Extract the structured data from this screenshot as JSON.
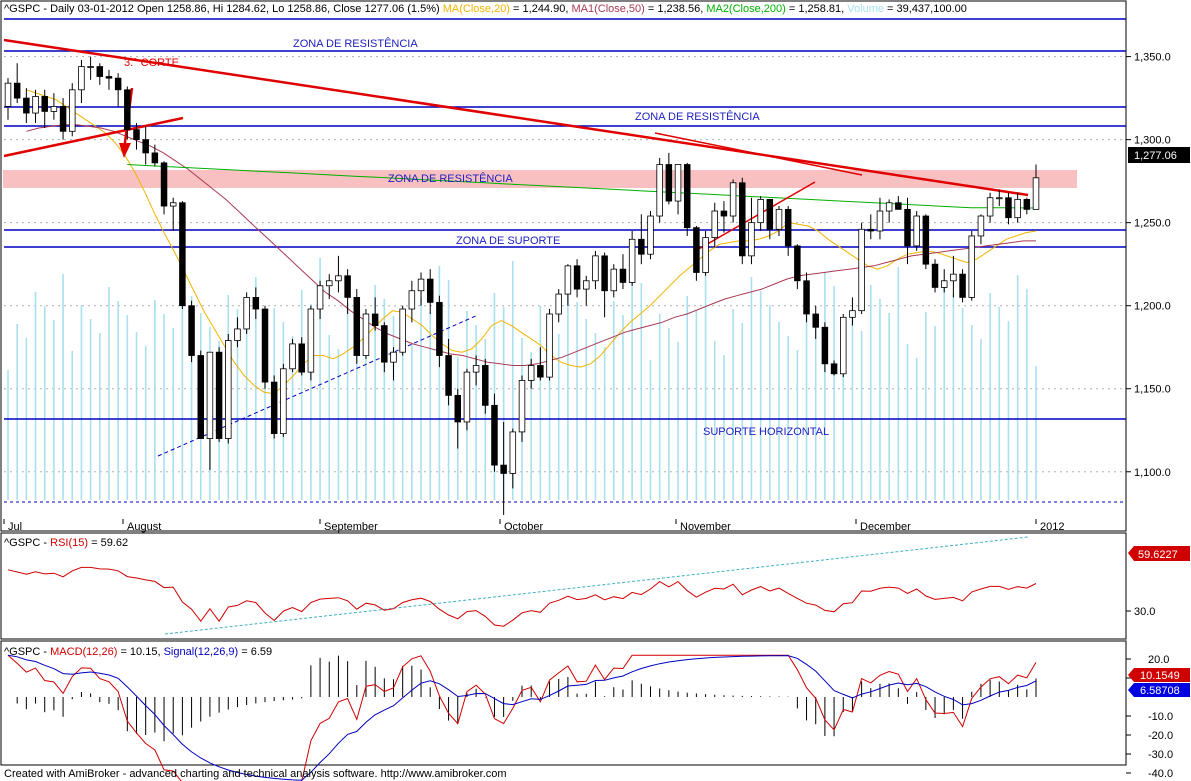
{
  "header": {
    "symbol": "^GSPC",
    "info": "^GSPC - Daily 03-01-2012 Open 1258.86, Hi 1284.62, Lo 1258.86, Close 1277.06 (1.5%)",
    "ma20": "MA(Close,20)",
    "ma20_val": " = 1,244.90,",
    "ma50": "MA1(Close,50)",
    "ma50_val": " = 1,238.56,",
    "ma200": "MA2(Close,200)",
    "ma200_val": " = 1,258.81,",
    "vol": "Volume",
    "vol_val": " = 39,437,100.00"
  },
  "colors": {
    "bull": "#ffffff",
    "bear": "#000000",
    "ma20": "#f4b400",
    "ma50": "#a83a54",
    "ma200": "#00b000",
    "volume": "#a8e0f0",
    "trend": "#e00000",
    "level": "#0000c0",
    "zone_fill": "#f8c0c0",
    "rsi": "#d00000",
    "macd": "#d00000",
    "signal": "#0000c0"
  },
  "price_axis": {
    "min": 1070,
    "max": 1370,
    "ticks": [
      "1,100.0",
      "1,150.0",
      "1,200.0",
      "1,250.0",
      "1,300.0",
      "1,350.0"
    ]
  },
  "last_price_label": "1,277.06",
  "months": [
    "Jul",
    "August",
    "September",
    "October",
    "November",
    "December",
    "2012"
  ],
  "annotations": {
    "zona_res_top": "ZONA DE RESISTÊNCIA",
    "zona_res_mid": "ZONA DE RESISTÊNCIA",
    "zona_res_pink": "ZONA DE RESISTÊNCIA",
    "zona_sup": "ZONA DE SUPORTE",
    "sup_horizontal": "SUPORTE HORIZONTAL",
    "corte": "3.° CORTE"
  },
  "rsi": {
    "title": "^GSPC - RSI(15) = 59.62",
    "label_prefix": "^GSPC - ",
    "name": "RSI(15)",
    "value": " = 59.62",
    "last_label": "59.6227",
    "tick": "30.0"
  },
  "macd": {
    "prefix": "^GSPC - ",
    "name": "MACD(12,26)",
    "value": " = 10.15, ",
    "sig_name": "Signal(12,26,9)",
    "sig_value": " = 6.59",
    "last_macd": "10.1549",
    "last_signal": "6.58708",
    "ticks": [
      "20.0",
      "10.0",
      "-10.0",
      "-20.0",
      "-30.0",
      "-40.0"
    ]
  },
  "footer": "Created with AmiBroker - advanced charting and technical analysis software. http://www.amibroker.com",
  "chart_data": {
    "type": "candlestick",
    "title": "^GSPC - Daily 03-01-2012",
    "ylim": [
      1070,
      1370
    ],
    "candles": [
      {
        "o": 1320,
        "h": 1337,
        "l": 1312,
        "c": 1334
      },
      {
        "o": 1334,
        "h": 1346,
        "l": 1322,
        "c": 1325
      },
      {
        "o": 1325,
        "h": 1331,
        "l": 1310,
        "c": 1316
      },
      {
        "o": 1316,
        "h": 1330,
        "l": 1310,
        "c": 1326
      },
      {
        "o": 1326,
        "h": 1330,
        "l": 1307,
        "c": 1317
      },
      {
        "o": 1317,
        "h": 1328,
        "l": 1312,
        "c": 1320
      },
      {
        "o": 1320,
        "h": 1325,
        "l": 1300,
        "c": 1305
      },
      {
        "o": 1305,
        "h": 1334,
        "l": 1302,
        "c": 1330
      },
      {
        "o": 1330,
        "h": 1348,
        "l": 1322,
        "c": 1344
      },
      {
        "o": 1344,
        "h": 1350,
        "l": 1336,
        "c": 1344
      },
      {
        "o": 1344,
        "h": 1346,
        "l": 1333,
        "c": 1338
      },
      {
        "o": 1338,
        "h": 1342,
        "l": 1330,
        "c": 1337
      },
      {
        "o": 1337,
        "h": 1340,
        "l": 1320,
        "c": 1330
      },
      {
        "o": 1330,
        "h": 1332,
        "l": 1300,
        "c": 1306
      },
      {
        "o": 1306,
        "h": 1310,
        "l": 1294,
        "c": 1300
      },
      {
        "o": 1300,
        "h": 1308,
        "l": 1285,
        "c": 1292
      },
      {
        "o": 1292,
        "h": 1297,
        "l": 1284,
        "c": 1286
      },
      {
        "o": 1286,
        "h": 1287,
        "l": 1255,
        "c": 1260
      },
      {
        "o": 1260,
        "h": 1265,
        "l": 1245,
        "c": 1262
      },
      {
        "o": 1262,
        "h": 1263,
        "l": 1198,
        "c": 1200
      },
      {
        "o": 1200,
        "h": 1203,
        "l": 1166,
        "c": 1170
      },
      {
        "o": 1170,
        "h": 1173,
        "l": 1120,
        "c": 1120
      },
      {
        "o": 1120,
        "h": 1172,
        "l": 1101,
        "c": 1172
      },
      {
        "o": 1172,
        "h": 1175,
        "l": 1118,
        "c": 1120
      },
      {
        "o": 1120,
        "h": 1183,
        "l": 1117,
        "c": 1179
      },
      {
        "o": 1179,
        "h": 1193,
        "l": 1175,
        "c": 1186
      },
      {
        "o": 1186,
        "h": 1208,
        "l": 1183,
        "c": 1205
      },
      {
        "o": 1205,
        "h": 1211,
        "l": 1192,
        "c": 1198
      },
      {
        "o": 1198,
        "h": 1200,
        "l": 1150,
        "c": 1154
      },
      {
        "o": 1154,
        "h": 1158,
        "l": 1120,
        "c": 1123
      },
      {
        "o": 1123,
        "h": 1165,
        "l": 1121,
        "c": 1162
      },
      {
        "o": 1162,
        "h": 1180,
        "l": 1160,
        "c": 1177
      },
      {
        "o": 1177,
        "h": 1181,
        "l": 1158,
        "c": 1160
      },
      {
        "o": 1160,
        "h": 1200,
        "l": 1155,
        "c": 1198
      },
      {
        "o": 1198,
        "h": 1215,
        "l": 1192,
        "c": 1212
      },
      {
        "o": 1212,
        "h": 1219,
        "l": 1204,
        "c": 1215
      },
      {
        "o": 1215,
        "h": 1230,
        "l": 1208,
        "c": 1218
      },
      {
        "o": 1218,
        "h": 1222,
        "l": 1195,
        "c": 1205
      },
      {
        "o": 1205,
        "h": 1210,
        "l": 1165,
        "c": 1170
      },
      {
        "o": 1170,
        "h": 1198,
        "l": 1168,
        "c": 1195
      },
      {
        "o": 1195,
        "h": 1205,
        "l": 1185,
        "c": 1188
      },
      {
        "o": 1188,
        "h": 1190,
        "l": 1160,
        "c": 1166
      },
      {
        "o": 1166,
        "h": 1175,
        "l": 1155,
        "c": 1172
      },
      {
        "o": 1172,
        "h": 1200,
        "l": 1170,
        "c": 1198
      },
      {
        "o": 1198,
        "h": 1215,
        "l": 1190,
        "c": 1209
      },
      {
        "o": 1209,
        "h": 1220,
        "l": 1200,
        "c": 1216
      },
      {
        "o": 1216,
        "h": 1222,
        "l": 1195,
        "c": 1202
      },
      {
        "o": 1202,
        "h": 1206,
        "l": 1163,
        "c": 1170
      },
      {
        "o": 1170,
        "h": 1180,
        "l": 1140,
        "c": 1146
      },
      {
        "o": 1146,
        "h": 1150,
        "l": 1114,
        "c": 1130
      },
      {
        "o": 1130,
        "h": 1162,
        "l": 1125,
        "c": 1160
      },
      {
        "o": 1160,
        "h": 1170,
        "l": 1152,
        "c": 1164
      },
      {
        "o": 1164,
        "h": 1168,
        "l": 1135,
        "c": 1140
      },
      {
        "o": 1140,
        "h": 1147,
        "l": 1100,
        "c": 1104
      },
      {
        "o": 1104,
        "h": 1130,
        "l": 1074,
        "c": 1099
      },
      {
        "o": 1099,
        "h": 1126,
        "l": 1090,
        "c": 1124
      },
      {
        "o": 1124,
        "h": 1158,
        "l": 1118,
        "c": 1155
      },
      {
        "o": 1155,
        "h": 1168,
        "l": 1150,
        "c": 1164
      },
      {
        "o": 1164,
        "h": 1175,
        "l": 1155,
        "c": 1157
      },
      {
        "o": 1157,
        "h": 1198,
        "l": 1155,
        "c": 1195
      },
      {
        "o": 1195,
        "h": 1210,
        "l": 1190,
        "c": 1207
      },
      {
        "o": 1207,
        "h": 1225,
        "l": 1200,
        "c": 1224
      },
      {
        "o": 1224,
        "h": 1228,
        "l": 1205,
        "c": 1210
      },
      {
        "o": 1210,
        "h": 1218,
        "l": 1200,
        "c": 1215
      },
      {
        "o": 1215,
        "h": 1233,
        "l": 1210,
        "c": 1230
      },
      {
        "o": 1230,
        "h": 1232,
        "l": 1193,
        "c": 1209
      },
      {
        "o": 1209,
        "h": 1225,
        "l": 1205,
        "c": 1222
      },
      {
        "o": 1222,
        "h": 1231,
        "l": 1210,
        "c": 1214
      },
      {
        "o": 1214,
        "h": 1245,
        "l": 1212,
        "c": 1240
      },
      {
        "o": 1240,
        "h": 1255,
        "l": 1225,
        "c": 1231
      },
      {
        "o": 1231,
        "h": 1257,
        "l": 1228,
        "c": 1254
      },
      {
        "o": 1254,
        "h": 1289,
        "l": 1250,
        "c": 1285
      },
      {
        "o": 1285,
        "h": 1292,
        "l": 1261,
        "c": 1263
      },
      {
        "o": 1263,
        "h": 1284,
        "l": 1255,
        "c": 1285
      },
      {
        "o": 1285,
        "h": 1286,
        "l": 1242,
        "c": 1247
      },
      {
        "o": 1247,
        "h": 1248,
        "l": 1215,
        "c": 1220
      },
      {
        "o": 1220,
        "h": 1245,
        "l": 1218,
        "c": 1241
      },
      {
        "o": 1241,
        "h": 1262,
        "l": 1235,
        "c": 1257
      },
      {
        "o": 1257,
        "h": 1263,
        "l": 1244,
        "c": 1254
      },
      {
        "o": 1254,
        "h": 1276,
        "l": 1250,
        "c": 1274
      },
      {
        "o": 1274,
        "h": 1277,
        "l": 1225,
        "c": 1230
      },
      {
        "o": 1230,
        "h": 1265,
        "l": 1225,
        "c": 1250
      },
      {
        "o": 1250,
        "h": 1266,
        "l": 1245,
        "c": 1264
      },
      {
        "o": 1264,
        "h": 1264,
        "l": 1240,
        "c": 1246
      },
      {
        "o": 1246,
        "h": 1260,
        "l": 1242,
        "c": 1258
      },
      {
        "o": 1258,
        "h": 1260,
        "l": 1230,
        "c": 1236
      },
      {
        "o": 1236,
        "h": 1237,
        "l": 1210,
        "c": 1215
      },
      {
        "o": 1215,
        "h": 1220,
        "l": 1190,
        "c": 1195
      },
      {
        "o": 1195,
        "h": 1200,
        "l": 1180,
        "c": 1187
      },
      {
        "o": 1187,
        "h": 1190,
        "l": 1160,
        "c": 1165
      },
      {
        "o": 1165,
        "h": 1167,
        "l": 1158,
        "c": 1159
      },
      {
        "o": 1159,
        "h": 1195,
        "l": 1157,
        "c": 1193
      },
      {
        "o": 1193,
        "h": 1205,
        "l": 1188,
        "c": 1197
      },
      {
        "o": 1197,
        "h": 1250,
        "l": 1195,
        "c": 1246
      },
      {
        "o": 1246,
        "h": 1255,
        "l": 1240,
        "c": 1245
      },
      {
        "o": 1245,
        "h": 1265,
        "l": 1240,
        "c": 1257
      },
      {
        "o": 1257,
        "h": 1264,
        "l": 1250,
        "c": 1262
      },
      {
        "o": 1262,
        "h": 1266,
        "l": 1258,
        "c": 1258
      },
      {
        "o": 1258,
        "h": 1265,
        "l": 1225,
        "c": 1236
      },
      {
        "o": 1236,
        "h": 1257,
        "l": 1233,
        "c": 1254
      },
      {
        "o": 1254,
        "h": 1255,
        "l": 1222,
        "c": 1225
      },
      {
        "o": 1225,
        "h": 1228,
        "l": 1208,
        "c": 1211
      },
      {
        "o": 1211,
        "h": 1222,
        "l": 1208,
        "c": 1215
      },
      {
        "o": 1215,
        "h": 1230,
        "l": 1205,
        "c": 1219
      },
      {
        "o": 1219,
        "h": 1222,
        "l": 1202,
        "c": 1205
      },
      {
        "o": 1205,
        "h": 1245,
        "l": 1203,
        "c": 1242
      },
      {
        "o": 1242,
        "h": 1255,
        "l": 1237,
        "c": 1254
      },
      {
        "o": 1254,
        "h": 1268,
        "l": 1250,
        "c": 1265
      },
      {
        "o": 1265,
        "h": 1270,
        "l": 1260,
        "c": 1265
      },
      {
        "o": 1265,
        "h": 1268,
        "l": 1249,
        "c": 1253
      },
      {
        "o": 1253,
        "h": 1268,
        "l": 1250,
        "c": 1264
      },
      {
        "o": 1264,
        "h": 1265,
        "l": 1255,
        "c": 1258
      },
      {
        "o": 1258,
        "h": 1285,
        "l": 1258,
        "c": 1277
      }
    ],
    "ma20": [
      1330,
      1328,
      1326,
      1324,
      1320,
      1316,
      1312,
      1308,
      1304,
      1298,
      1290,
      1280,
      1268,
      1255,
      1243,
      1232,
      1220,
      1208,
      1196,
      1186,
      1176,
      1166,
      1158,
      1152,
      1148,
      1147,
      1152,
      1158,
      1165,
      1170,
      1170,
      1168,
      1171,
      1175,
      1180,
      1186,
      1192,
      1197,
      1196,
      1192,
      1188,
      1182,
      1177,
      1173,
      1172,
      1174,
      1180,
      1188,
      1191,
      1188,
      1184,
      1180,
      1176,
      1170,
      1166,
      1164,
      1163,
      1165,
      1170,
      1177,
      1184,
      1190,
      1195,
      1200,
      1206,
      1212,
      1218,
      1223,
      1228,
      1233,
      1237,
      1238,
      1239,
      1239,
      1240,
      1242,
      1245,
      1250,
      1249,
      1248,
      1245,
      1240,
      1236,
      1232,
      1228,
      1224,
      1222,
      1224,
      1228,
      1231,
      1232,
      1233,
      1232,
      1230,
      1228,
      1226,
      1228,
      1232,
      1236,
      1240,
      1242,
      1244,
      1245
    ],
    "ma50": [
      1305,
      1307,
      1308,
      1309,
      1309,
      1308,
      1307,
      1305,
      1302,
      1299,
      1296,
      1292,
      1287,
      1282,
      1276,
      1270,
      1264,
      1257,
      1250,
      1243,
      1236,
      1229,
      1222,
      1215,
      1208,
      1203,
      1197,
      1192,
      1187,
      1183,
      1180,
      1177,
      1175,
      1173,
      1171,
      1170,
      1168,
      1166,
      1165,
      1164,
      1164,
      1165,
      1167,
      1169,
      1172,
      1175,
      1178,
      1181,
      1184,
      1186,
      1188,
      1190,
      1193,
      1195,
      1198,
      1201,
      1204,
      1206,
      1208,
      1210,
      1213,
      1216,
      1218,
      1219,
      1220,
      1221,
      1222,
      1223,
      1224,
      1226,
      1228,
      1230,
      1231,
      1232,
      1233,
      1234,
      1235,
      1236,
      1237,
      1238,
      1239,
      1239
    ],
    "ma200": [
      1285,
      1284,
      1283,
      1282,
      1281,
      1280,
      1279,
      1278,
      1277,
      1276,
      1275,
      1274,
      1273,
      1272,
      1271,
      1270,
      1269,
      1268,
      1267,
      1266,
      1265,
      1264,
      1263,
      1262,
      1261,
      1260,
      1259,
      1259,
      1258.8
    ]
  }
}
